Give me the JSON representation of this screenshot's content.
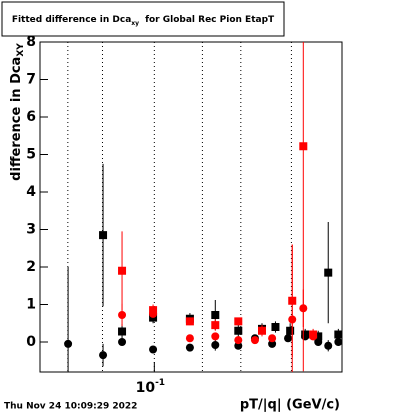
{
  "chart_data": {
    "type": "scatter",
    "title": "Fitted difference in Dca",
    "title_subscript": "xy",
    "title_rest": "for Global Rec Pion EtapT",
    "y_label": "difference in Dca",
    "y_label_subscript": "XY",
    "x_label": "pT/|q| (GeV/c)",
    "timestamp": "Thu Nov 24 10:09:29 2022",
    "log_x": true,
    "xlim": [
      0.04,
      0.45
    ],
    "ylim": [
      -0.8,
      8
    ],
    "xticks": [
      {
        "value": 0.1,
        "label": "10",
        "exponent": "-1"
      }
    ],
    "xgrid": [
      0.05,
      0.066,
      0.1,
      0.147,
      0.2,
      0.3
    ],
    "yticks": [
      0,
      1,
      2,
      3,
      4,
      5,
      6,
      7,
      8
    ],
    "grid_x": true,
    "series": [
      {
        "color": "#000000",
        "marker": "circle",
        "x": [
          0.0501,
          0.0663,
          0.0772,
          0.099,
          0.133,
          0.163,
          0.196,
          0.224,
          0.257,
          0.292,
          0.335,
          0.372,
          0.403,
          0.437
        ],
        "values": [
          -0.05,
          -0.35,
          0.0,
          -0.2,
          -0.15,
          -0.08,
          -0.1,
          0.1,
          -0.05,
          0.1,
          0.15,
          0.0,
          -0.1,
          0.0
        ],
        "errors": [
          2.05,
          0.3,
          0.1,
          0.1,
          0.1,
          0.15,
          0.1,
          0.1,
          0.1,
          0.1,
          0.1,
          0.1,
          0.15,
          0.1
        ]
      },
      {
        "color": "#000000",
        "marker": "square",
        "x": [
          0.0663,
          0.0772,
          0.099,
          0.133,
          0.163,
          0.196,
          0.237,
          0.264,
          0.297,
          0.335,
          0.372,
          0.403,
          0.437
        ],
        "values": [
          2.85,
          0.28,
          0.65,
          0.62,
          0.72,
          0.3,
          0.35,
          0.4,
          0.3,
          0.2,
          0.15,
          1.85,
          0.2
        ],
        "errors": [
          1.9,
          0.2,
          0.15,
          0.15,
          0.4,
          0.2,
          0.15,
          0.15,
          0.2,
          0.15,
          0.15,
          1.35,
          0.15
        ]
      },
      {
        "color": "#ff0000",
        "marker": "square",
        "x": [
          0.0772,
          0.099,
          0.133,
          0.163,
          0.196,
          0.237,
          0.302,
          0.33,
          0.357
        ],
        "values": [
          1.9,
          0.85,
          0.55,
          0.45,
          0.55,
          0.3,
          1.1,
          5.22,
          0.2
        ],
        "errors": [
          1.05,
          0.15,
          0.1,
          0.15,
          0.1,
          0.15,
          1.5,
          6.0,
          0.15
        ]
      },
      {
        "color": "#ff0000",
        "marker": "circle",
        "x": [
          0.0772,
          0.099,
          0.133,
          0.163,
          0.196,
          0.224,
          0.257,
          0.302,
          0.33,
          0.357
        ],
        "values": [
          0.72,
          0.75,
          0.1,
          0.15,
          0.05,
          0.05,
          0.1,
          0.6,
          0.9,
          0.15
        ],
        "errors": [
          0.3,
          0.1,
          0.1,
          0.1,
          0.1,
          0.1,
          0.1,
          2.0,
          0.5,
          0.1
        ]
      }
    ]
  }
}
